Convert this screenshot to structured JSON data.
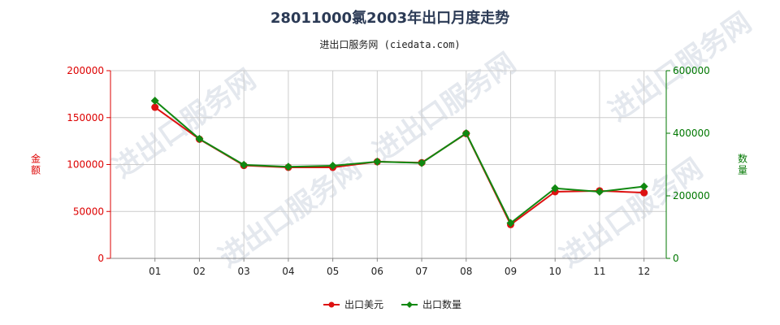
{
  "title": "28011000氯2003年出口月度走势",
  "subtitle": "进出口服务网 (ciedata.com)",
  "watermark": "进出口服务网",
  "colors": {
    "left_axis": "#dd0000",
    "right_axis": "#007700",
    "usd": "#dd1111",
    "qty": "#118811",
    "grid": "#cccccc"
  },
  "chart_data": {
    "type": "line",
    "categories": [
      "01",
      "02",
      "03",
      "04",
      "05",
      "06",
      "07",
      "08",
      "09",
      "10",
      "11",
      "12"
    ],
    "ylabel": "金额",
    "y2label": "数量",
    "ylim": [
      0,
      200000
    ],
    "y2lim": [
      0,
      600000
    ],
    "yticks": [
      "0",
      "50000",
      "100000",
      "150000",
      "200000"
    ],
    "y2ticks": [
      "0",
      "200000",
      "400000",
      "600000"
    ],
    "series": [
      {
        "name": "出口美元",
        "axis": "left",
        "color": "#dd1111",
        "marker": "circle",
        "values": [
          161000,
          127000,
          99000,
          97000,
          97000,
          103000,
          102000,
          133000,
          36000,
          71000,
          72000,
          70000
        ]
      },
      {
        "name": "出口数量",
        "axis": "right",
        "color": "#118811",
        "marker": "diamond",
        "values": [
          504000,
          382000,
          299000,
          293000,
          296000,
          309000,
          305000,
          400000,
          113000,
          224000,
          213000,
          230000
        ]
      }
    ],
    "legend_position": "bottom-center",
    "grid": true
  }
}
